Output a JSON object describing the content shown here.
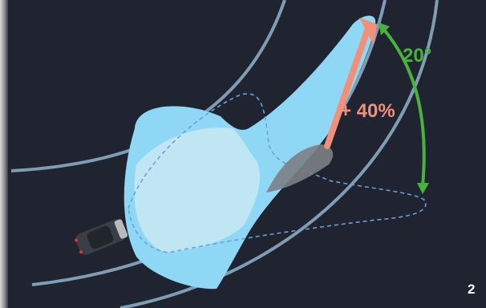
{
  "labels": {
    "angle": "20°",
    "gain": "+ 40%",
    "page_number": "2"
  },
  "colors": {
    "background": "#1f2430",
    "road_lines": "#7f9db5",
    "beam_fill": "#8fd8f5",
    "beam_overlap": "#c9e9f3",
    "beam_outline": "#6f9ed8",
    "gain_arrow": "#f0907a",
    "angle_arc": "#49b23f",
    "page_number": "#ffffff"
  }
}
